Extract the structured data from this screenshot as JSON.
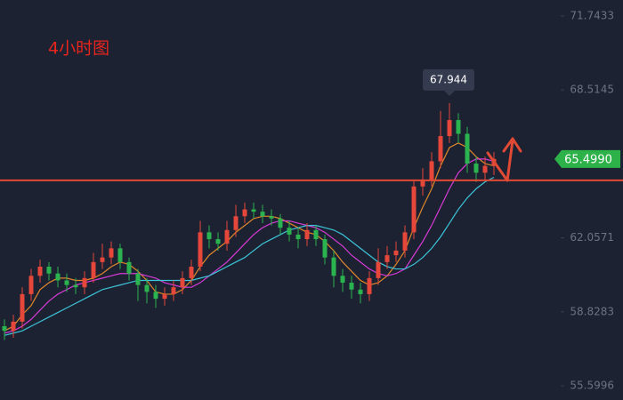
{
  "chart_data": {
    "type": "candlestick",
    "title": "4小时图",
    "ylim": [
      54.98,
      72.44
    ],
    "yticks": [
      55.5996,
      58.8283,
      62.0571,
      68.5145,
      71.7433
    ],
    "candles": {
      "open": [
        58.2,
        58.0,
        58.4,
        59.6,
        60.4,
        60.8,
        60.5,
        60.2,
        60.0,
        59.9,
        60.3,
        61.0,
        61.2,
        61.6,
        61.0,
        60.5,
        60.0,
        59.7,
        59.4,
        59.6,
        59.9,
        60.3,
        60.8,
        62.3,
        62.0,
        61.8,
        62.4,
        63.0,
        63.3,
        63.2,
        63.0,
        62.9,
        62.5,
        62.2,
        62.0,
        62.4,
        62.0,
        61.2,
        60.4,
        60.1,
        59.8,
        59.6,
        60.3,
        61.0,
        61.3,
        61.5,
        62.3,
        64.3,
        64.6,
        65.4,
        66.5,
        67.2,
        66.6,
        65.3,
        64.9,
        65.2
      ],
      "high": [
        58.5,
        58.7,
        59.9,
        60.7,
        61.1,
        61.0,
        60.8,
        60.5,
        60.3,
        60.6,
        61.4,
        61.8,
        61.9,
        61.8,
        61.2,
        60.7,
        60.3,
        60.0,
        59.9,
        60.2,
        60.6,
        61.1,
        62.8,
        62.6,
        62.3,
        62.8,
        63.5,
        63.6,
        63.6,
        63.5,
        63.3,
        63.1,
        62.8,
        62.5,
        62.7,
        62.6,
        62.2,
        61.5,
        60.7,
        60.4,
        60.1,
        60.6,
        61.6,
        61.7,
        61.9,
        62.6,
        64.6,
        65.1,
        65.8,
        67.6,
        67.944,
        67.5,
        66.9,
        65.6,
        65.6,
        65.8
      ],
      "low": [
        57.6,
        57.7,
        58.1,
        59.3,
        60.1,
        60.2,
        59.9,
        59.7,
        59.6,
        59.6,
        60.1,
        60.7,
        60.9,
        60.7,
        60.2,
        59.3,
        59.2,
        59.0,
        59.1,
        59.3,
        59.6,
        60.0,
        60.6,
        61.6,
        61.5,
        61.5,
        62.1,
        62.7,
        62.9,
        62.7,
        62.6,
        62.2,
        61.9,
        61.6,
        61.7,
        61.7,
        60.9,
        59.9,
        59.7,
        59.4,
        59.2,
        59.3,
        60.0,
        60.7,
        61.0,
        61.2,
        62.0,
        63.9,
        64.3,
        65.1,
        66.2,
        66.2,
        64.9,
        64.5,
        64.6,
        64.8
      ],
      "close": [
        58.0,
        58.4,
        59.6,
        60.4,
        60.8,
        60.5,
        60.2,
        60.0,
        59.9,
        60.3,
        61.0,
        61.2,
        61.6,
        61.0,
        60.5,
        60.0,
        59.7,
        59.4,
        59.6,
        59.9,
        60.3,
        60.8,
        62.3,
        62.0,
        61.8,
        62.4,
        63.0,
        63.3,
        63.2,
        63.0,
        62.9,
        62.5,
        62.2,
        62.0,
        62.4,
        62.0,
        61.2,
        60.4,
        60.1,
        59.8,
        59.6,
        60.3,
        61.0,
        61.3,
        61.5,
        62.3,
        64.3,
        64.6,
        65.4,
        66.5,
        67.2,
        66.6,
        65.3,
        64.9,
        65.2,
        65.5
      ],
      "up_color": "#e5473a",
      "down_color": "#2bb34f"
    },
    "series": [
      {
        "color": "#e0862a",
        "values": [
          58.0,
          58.2,
          58.7,
          59.1,
          59.8,
          60.1,
          60.3,
          60.3,
          60.2,
          60.2,
          60.3,
          60.5,
          60.8,
          61.0,
          60.9,
          60.6,
          60.2,
          59.7,
          59.6,
          59.6,
          59.8,
          60.2,
          60.8,
          61.3,
          61.6,
          61.9,
          62.3,
          62.6,
          62.9,
          63.0,
          63.0,
          62.9,
          62.7,
          62.5,
          62.3,
          62.2,
          61.9,
          61.5,
          61.0,
          60.6,
          60.2,
          60.0,
          60.1,
          60.4,
          60.9,
          61.5,
          62.5,
          63.4,
          64.2,
          65.2,
          66.0,
          66.2,
          66.0,
          65.6,
          65.3,
          65.2
        ]
      },
      {
        "color": "#d63ad6",
        "values": [
          57.9,
          58.0,
          58.2,
          58.5,
          58.9,
          59.3,
          59.6,
          59.8,
          60.0,
          60.1,
          60.2,
          60.3,
          60.4,
          60.5,
          60.5,
          60.5,
          60.4,
          60.3,
          60.1,
          60.0,
          59.9,
          59.9,
          60.1,
          60.4,
          60.7,
          61.0,
          61.4,
          61.8,
          62.2,
          62.5,
          62.7,
          62.8,
          62.8,
          62.7,
          62.6,
          62.5,
          62.3,
          62.0,
          61.7,
          61.3,
          61.0,
          60.7,
          60.5,
          60.4,
          60.5,
          60.7,
          61.3,
          61.9,
          62.6,
          63.4,
          64.2,
          64.9,
          65.3,
          65.5,
          65.5,
          65.4
        ]
      },
      {
        "color": "#3cc4d8",
        "values": [
          57.8,
          57.9,
          58.0,
          58.2,
          58.4,
          58.6,
          58.8,
          59.0,
          59.2,
          59.4,
          59.6,
          59.8,
          59.9,
          60.0,
          60.1,
          60.2,
          60.2,
          60.2,
          60.2,
          60.2,
          60.2,
          60.2,
          60.3,
          60.4,
          60.6,
          60.8,
          61.0,
          61.2,
          61.5,
          61.8,
          62.0,
          62.2,
          62.4,
          62.5,
          62.6,
          62.6,
          62.5,
          62.4,
          62.2,
          61.9,
          61.6,
          61.3,
          61.0,
          60.8,
          60.7,
          60.7,
          60.9,
          61.2,
          61.6,
          62.1,
          62.7,
          63.3,
          63.8,
          64.2,
          64.5,
          64.7
        ]
      }
    ],
    "hline": {
      "value": 64.57,
      "color": "#e04a35"
    },
    "price_tag": {
      "value": 65.499,
      "label": "65.4990",
      "color": "#2db24a"
    }
  }
}
